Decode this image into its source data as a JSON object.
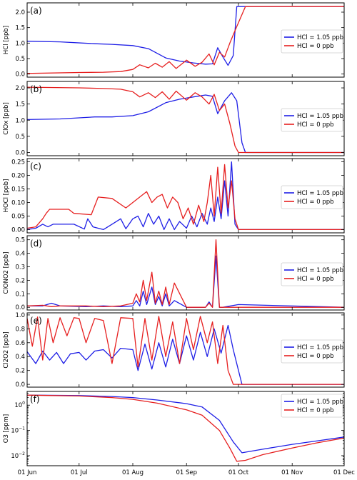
{
  "colors": {
    "hcl105": "#1f1fe6",
    "hcl0": "#e61f1f"
  },
  "x_axis": {
    "type": "date",
    "ticks": [
      "01 Jun",
      "01 Jul",
      "01 Aug",
      "01 Sep",
      "01 Oct",
      "01 Nov",
      "01 Dec"
    ],
    "range": [
      "2013-06-01",
      "2013-12-01"
    ]
  },
  "legend": {
    "placement": "right",
    "entries": [
      "HCl = 1.05 ppb",
      "HCl = 0 ppb"
    ]
  },
  "chart_data": [
    {
      "type": "line",
      "label": "(a)",
      "ylabel": "HCl [ppb]",
      "ylim": [
        -0.1,
        2.3
      ],
      "yscale": "linear",
      "yticks": [
        0.0,
        0.5,
        1.0,
        1.5,
        2.0
      ],
      "yticklabels": [
        "0.0",
        "0.5",
        "1.0",
        "1.5",
        "2.0"
      ],
      "series": [
        {
          "name": "HCl = 1.05 ppb",
          "color": "#1f1fe6",
          "x": [
            "2013-06-01",
            "2013-06-20",
            "2013-07-10",
            "2013-07-20",
            "2013-08-01",
            "2013-08-10",
            "2013-08-20",
            "2013-08-28",
            "2013-09-05",
            "2013-09-12",
            "2013-09-16",
            "2013-09-19",
            "2013-09-22",
            "2013-09-25",
            "2013-09-28",
            "2013-09-30",
            "2013-10-05",
            "2013-12-01"
          ],
          "y": [
            1.06,
            1.04,
            0.98,
            0.96,
            0.92,
            0.82,
            0.52,
            0.42,
            0.36,
            0.32,
            0.33,
            0.85,
            0.55,
            0.28,
            0.6,
            2.18,
            2.18,
            2.18
          ]
        },
        {
          "name": "HCl = 0 ppb",
          "color": "#e61f1f",
          "x": [
            "2013-06-01",
            "2013-07-01",
            "2013-07-15",
            "2013-07-25",
            "2013-08-01",
            "2013-08-05",
            "2013-08-10",
            "2013-08-14",
            "2013-08-18",
            "2013-08-22",
            "2013-08-26",
            "2013-09-01",
            "2013-09-06",
            "2013-09-10",
            "2013-09-14",
            "2013-09-17",
            "2013-09-20",
            "2013-09-23",
            "2013-09-26",
            "2013-09-29",
            "2013-10-05",
            "2013-12-01"
          ],
          "y": [
            0.02,
            0.05,
            0.06,
            0.08,
            0.15,
            0.3,
            0.2,
            0.35,
            0.22,
            0.4,
            0.18,
            0.45,
            0.25,
            0.38,
            0.65,
            0.3,
            0.7,
            0.55,
            1.0,
            1.4,
            2.18,
            2.18
          ]
        }
      ]
    },
    {
      "type": "line",
      "label": "(b)",
      "ylabel": "ClOx [ppb]",
      "ylim": [
        -0.1,
        2.2
      ],
      "yscale": "linear",
      "yticks": [
        0.0,
        0.5,
        1.0,
        1.5,
        2.0
      ],
      "yticklabels": [
        "0.0",
        "0.5",
        "1.0",
        "1.5",
        "2.0"
      ],
      "series": [
        {
          "name": "HCl = 1.05 ppb",
          "color": "#1f1fe6",
          "x": [
            "2013-06-01",
            "2013-06-20",
            "2013-07-10",
            "2013-07-20",
            "2013-08-01",
            "2013-08-10",
            "2013-08-20",
            "2013-08-28",
            "2013-09-05",
            "2013-09-12",
            "2013-09-16",
            "2013-09-19",
            "2013-09-23",
            "2013-09-27",
            "2013-09-30",
            "2013-10-03",
            "2013-10-05",
            "2013-12-01"
          ],
          "y": [
            1.02,
            1.04,
            1.1,
            1.1,
            1.14,
            1.26,
            1.54,
            1.65,
            1.72,
            1.78,
            1.74,
            1.2,
            1.6,
            1.85,
            1.6,
            0.3,
            0.0,
            0.0
          ]
        },
        {
          "name": "HCl = 0 ppb",
          "color": "#e61f1f",
          "x": [
            "2013-06-01",
            "2013-07-01",
            "2013-07-15",
            "2013-07-25",
            "2013-08-01",
            "2013-08-05",
            "2013-08-10",
            "2013-08-14",
            "2013-08-18",
            "2013-08-22",
            "2013-08-26",
            "2013-09-01",
            "2013-09-06",
            "2013-09-10",
            "2013-09-14",
            "2013-09-17",
            "2013-09-20",
            "2013-09-23",
            "2013-09-26",
            "2013-09-29",
            "2013-10-01",
            "2013-12-01"
          ],
          "y": [
            2.02,
            2.0,
            1.98,
            1.96,
            1.88,
            1.72,
            1.85,
            1.7,
            1.88,
            1.65,
            1.9,
            1.62,
            1.85,
            1.72,
            1.5,
            1.8,
            1.3,
            1.5,
            0.9,
            0.2,
            0.0,
            0.0
          ]
        }
      ]
    },
    {
      "type": "line",
      "label": "(c)",
      "ylabel": "HOCl [ppb]",
      "ylim": [
        -0.012,
        0.262
      ],
      "yscale": "linear",
      "yticks": [
        0.0,
        0.05,
        0.1,
        0.15,
        0.2,
        0.25
      ],
      "yticklabels": [
        "0.00",
        "0.05",
        "0.10",
        "0.15",
        "0.20",
        "0.25"
      ],
      "series": [
        {
          "name": "HCl = 1.05 ppb",
          "color": "#1f1fe6",
          "x": [
            "2013-06-01",
            "2013-06-06",
            "2013-06-10",
            "2013-06-13",
            "2013-06-16",
            "2013-06-28",
            "2013-07-04",
            "2013-07-06",
            "2013-07-09",
            "2013-07-15",
            "2013-07-20",
            "2013-07-25",
            "2013-07-28",
            "2013-08-01",
            "2013-08-04",
            "2013-08-07",
            "2013-08-10",
            "2013-08-13",
            "2013-08-16",
            "2013-08-19",
            "2013-08-22",
            "2013-08-25",
            "2013-08-28",
            "2013-09-01",
            "2013-09-04",
            "2013-09-07",
            "2013-09-10",
            "2013-09-13",
            "2013-09-15",
            "2013-09-17",
            "2013-09-19",
            "2013-09-21",
            "2013-09-23",
            "2013-09-25",
            "2013-09-27",
            "2013-09-29",
            "2013-10-01",
            "2013-12-01"
          ],
          "y": [
            0.0,
            0.005,
            0.02,
            0.01,
            0.02,
            0.02,
            0.002,
            0.04,
            0.01,
            0.0,
            0.02,
            0.04,
            0.003,
            0.04,
            0.05,
            0.01,
            0.06,
            0.02,
            0.05,
            0.0,
            0.04,
            0.0,
            0.03,
            0.005,
            0.05,
            0.01,
            0.06,
            0.02,
            0.08,
            0.03,
            0.12,
            0.04,
            0.18,
            0.05,
            0.25,
            0.02,
            0.0,
            0.0
          ]
        },
        {
          "name": "HCl = 0 ppb",
          "color": "#e61f1f",
          "x": [
            "2013-06-01",
            "2013-06-06",
            "2013-06-10",
            "2013-06-12",
            "2013-06-14",
            "2013-06-25",
            "2013-06-28",
            "2013-07-08",
            "2013-07-12",
            "2013-07-20",
            "2013-07-28",
            "2013-08-01",
            "2013-08-05",
            "2013-08-09",
            "2013-08-12",
            "2013-08-15",
            "2013-08-18",
            "2013-08-21",
            "2013-08-24",
            "2013-08-27",
            "2013-08-30",
            "2013-09-02",
            "2013-09-05",
            "2013-09-08",
            "2013-09-11",
            "2013-09-13",
            "2013-09-15",
            "2013-09-17",
            "2013-09-19",
            "2013-09-21",
            "2013-09-23",
            "2013-09-25",
            "2013-09-27",
            "2013-09-29",
            "2013-10-01",
            "2013-12-01"
          ],
          "y": [
            0.005,
            0.01,
            0.04,
            0.06,
            0.075,
            0.075,
            0.06,
            0.055,
            0.12,
            0.115,
            0.08,
            0.1,
            0.12,
            0.14,
            0.1,
            0.12,
            0.13,
            0.08,
            0.12,
            0.1,
            0.04,
            0.08,
            0.02,
            0.09,
            0.03,
            0.1,
            0.2,
            0.05,
            0.23,
            0.06,
            0.24,
            0.08,
            0.18,
            0.04,
            0.0,
            0.0
          ]
        }
      ]
    },
    {
      "type": "line",
      "label": "(d)",
      "ylabel": "ClONO2 [ppb]",
      "ylim": [
        -0.02,
        0.53
      ],
      "yscale": "linear",
      "yticks": [
        0.0,
        0.1,
        0.2,
        0.3,
        0.4,
        0.5
      ],
      "yticklabels": [
        "0.0",
        "0.1",
        "0.2",
        "0.3",
        "0.4",
        "0.5"
      ],
      "series": [
        {
          "name": "HCl = 1.05 ppb",
          "color": "#1f1fe6",
          "x": [
            "2013-06-01",
            "2013-06-10",
            "2013-06-15",
            "2013-06-20",
            "2013-07-05",
            "2013-07-15",
            "2013-07-25",
            "2013-08-01",
            "2013-08-03",
            "2013-08-05",
            "2013-08-07",
            "2013-08-09",
            "2013-08-12",
            "2013-08-14",
            "2013-08-16",
            "2013-08-18",
            "2013-08-20",
            "2013-08-22",
            "2013-08-25",
            "2013-09-01",
            "2013-09-08",
            "2013-09-12",
            "2013-09-14",
            "2013-09-16",
            "2013-09-18",
            "2013-09-20",
            "2013-09-22",
            "2013-10-01",
            "2013-12-01"
          ],
          "y": [
            0.01,
            0.01,
            0.03,
            0.01,
            0.005,
            0.01,
            0.005,
            0.01,
            0.05,
            0.01,
            0.12,
            0.02,
            0.15,
            0.02,
            0.08,
            0.01,
            0.1,
            0.01,
            0.05,
            0.0,
            0.0,
            0.0,
            0.04,
            0.0,
            0.38,
            0.0,
            0.0,
            0.02,
            0.0
          ]
        },
        {
          "name": "HCl = 0 ppb",
          "color": "#e61f1f",
          "x": [
            "2013-06-01",
            "2013-06-10",
            "2013-06-15",
            "2013-06-20",
            "2013-07-05",
            "2013-07-15",
            "2013-07-25",
            "2013-08-01",
            "2013-08-03",
            "2013-08-05",
            "2013-08-07",
            "2013-08-09",
            "2013-08-12",
            "2013-08-14",
            "2013-08-16",
            "2013-08-18",
            "2013-08-20",
            "2013-08-22",
            "2013-08-25",
            "2013-09-01",
            "2013-09-08",
            "2013-09-12",
            "2013-09-14",
            "2013-09-16",
            "2013-09-18",
            "2013-09-20",
            "2013-09-22",
            "2013-10-01",
            "2013-12-01"
          ],
          "y": [
            0.01,
            0.015,
            0.005,
            0.01,
            0.01,
            0.005,
            0.01,
            0.03,
            0.1,
            0.04,
            0.2,
            0.05,
            0.26,
            0.03,
            0.12,
            0.02,
            0.15,
            0.02,
            0.18,
            0.0,
            0.0,
            0.0,
            0.03,
            0.0,
            0.5,
            0.0,
            0.0,
            0.0,
            0.0
          ]
        }
      ]
    },
    {
      "type": "line",
      "label": "(e)",
      "ylabel": "Cl2O2 [ppb]",
      "ylim": [
        -0.04,
        1.03
      ],
      "yscale": "linear",
      "yticks": [
        0.0,
        0.2,
        0.4,
        0.6,
        0.8,
        1.0
      ],
      "yticklabels": [
        "0.0",
        "0.2",
        "0.4",
        "0.6",
        "0.8",
        "1.0"
      ],
      "series": [
        {
          "name": "HCl = 1.05 ppb",
          "color": "#1f1fe6",
          "x": [
            "2013-06-01",
            "2013-06-06",
            "2013-06-10",
            "2013-06-14",
            "2013-06-18",
            "2013-06-22",
            "2013-06-26",
            "2013-07-01",
            "2013-07-05",
            "2013-07-10",
            "2013-07-15",
            "2013-07-20",
            "2013-07-25",
            "2013-08-01",
            "2013-08-04",
            "2013-08-08",
            "2013-08-12",
            "2013-08-16",
            "2013-08-20",
            "2013-08-24",
            "2013-08-28",
            "2013-09-01",
            "2013-09-05",
            "2013-09-09",
            "2013-09-13",
            "2013-09-17",
            "2013-09-21",
            "2013-09-25",
            "2013-09-28",
            "2013-10-01",
            "2013-10-03",
            "2013-12-01"
          ],
          "y": [
            0.47,
            0.3,
            0.48,
            0.35,
            0.46,
            0.3,
            0.44,
            0.46,
            0.35,
            0.48,
            0.5,
            0.38,
            0.52,
            0.5,
            0.2,
            0.58,
            0.22,
            0.6,
            0.25,
            0.65,
            0.3,
            0.7,
            0.35,
            0.75,
            0.4,
            0.8,
            0.45,
            0.85,
            0.5,
            0.2,
            0.0,
            0.0
          ]
        },
        {
          "name": "HCl = 0 ppb",
          "color": "#e61f1f",
          "x": [
            "2013-06-01",
            "2013-06-04",
            "2013-06-07",
            "2013-06-10",
            "2013-06-13",
            "2013-06-16",
            "2013-06-20",
            "2013-06-24",
            "2013-06-28",
            "2013-07-01",
            "2013-07-05",
            "2013-07-10",
            "2013-07-15",
            "2013-07-20",
            "2013-07-25",
            "2013-08-01",
            "2013-08-04",
            "2013-08-08",
            "2013-08-12",
            "2013-08-16",
            "2013-08-20",
            "2013-08-24",
            "2013-08-28",
            "2013-09-01",
            "2013-09-05",
            "2013-09-09",
            "2013-09-13",
            "2013-09-16",
            "2013-09-19",
            "2013-09-22",
            "2013-09-25",
            "2013-09-28",
            "2013-12-01"
          ],
          "y": [
            0.95,
            0.55,
            0.97,
            0.35,
            0.95,
            0.6,
            0.96,
            0.7,
            0.96,
            0.95,
            0.6,
            0.95,
            0.92,
            0.3,
            0.96,
            0.95,
            0.25,
            0.95,
            0.35,
            0.98,
            0.4,
            0.9,
            0.3,
            0.95,
            0.5,
            0.98,
            0.6,
            0.9,
            0.3,
            0.85,
            0.2,
            0.0,
            0.0
          ]
        }
      ]
    },
    {
      "type": "line",
      "label": "(f)",
      "ylabel": "O3 [ppm]",
      "ylim": [
        0.004,
        3.5
      ],
      "yscale": "log",
      "yticks": [
        0.01,
        0.1,
        1.0
      ],
      "yticklabels": [
        "10^-2",
        "10^-1",
        "10^0"
      ],
      "series": [
        {
          "name": "HCl = 1.05 ppb",
          "color": "#1f1fe6",
          "x": [
            "2013-06-01",
            "2013-07-01",
            "2013-07-20",
            "2013-08-01",
            "2013-08-15",
            "2013-09-01",
            "2013-09-10",
            "2013-09-20",
            "2013-09-28",
            "2013-10-03",
            "2013-10-15",
            "2013-11-01",
            "2013-11-15",
            "2013-12-01"
          ],
          "y": [
            2.5,
            2.4,
            2.2,
            2.0,
            1.6,
            1.15,
            0.85,
            0.25,
            0.035,
            0.013,
            0.018,
            0.028,
            0.038,
            0.055
          ]
        },
        {
          "name": "HCl = 0 ppb",
          "color": "#e61f1f",
          "x": [
            "2013-06-01",
            "2013-07-01",
            "2013-07-20",
            "2013-08-01",
            "2013-08-15",
            "2013-09-01",
            "2013-09-10",
            "2013-09-20",
            "2013-09-26",
            "2013-09-30",
            "2013-10-05",
            "2013-10-15",
            "2013-11-01",
            "2013-11-15",
            "2013-12-01"
          ],
          "y": [
            2.5,
            2.3,
            2.0,
            1.7,
            1.2,
            0.65,
            0.4,
            0.1,
            0.02,
            0.006,
            0.0065,
            0.011,
            0.02,
            0.032,
            0.05
          ]
        }
      ]
    }
  ]
}
